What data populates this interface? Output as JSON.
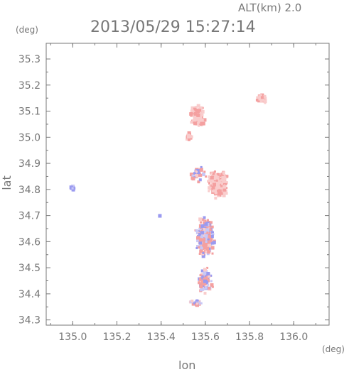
{
  "header": {
    "altitude_label": "ALT(km) 2.0",
    "datetime": "2013/05/29 15:27:14"
  },
  "axes": {
    "y_unit": "(deg)",
    "x_unit": "(deg)",
    "y_label": "lat",
    "x_label": "lon",
    "x_range": [
      134.88,
      136.16
    ],
    "y_range": [
      34.28,
      35.36
    ],
    "x_ticks": [
      "135.0",
      "135.2",
      "135.4",
      "135.6",
      "135.8",
      "136.0"
    ],
    "y_ticks": [
      "35.3",
      "35.2",
      "35.1",
      "35.0",
      "34.9",
      "34.8",
      "34.7",
      "34.6",
      "34.5",
      "34.4",
      "34.3"
    ]
  },
  "colors": {
    "frame": "#777777",
    "positive": "#f4a0a0",
    "positive_light": "#f9cccc",
    "negative": "#9a9af0",
    "negative_light": "#c8c8f6"
  },
  "map_data": {
    "type": "scatter-field",
    "value_scale": "red positive / blue negative",
    "clusters": [
      {
        "lon": 135.0,
        "lat": 34.805,
        "lon_spread": 0.015,
        "lat_spread": 0.012,
        "sign": "negative",
        "n": 18
      },
      {
        "lon": 135.565,
        "lat": 35.08,
        "lon_spread": 0.035,
        "lat_spread": 0.05,
        "sign": "positive",
        "n": 140
      },
      {
        "lon": 135.525,
        "lat": 35.0,
        "lon_spread": 0.02,
        "lat_spread": 0.02,
        "sign": "positive",
        "n": 25
      },
      {
        "lon": 135.855,
        "lat": 35.15,
        "lon_spread": 0.03,
        "lat_spread": 0.025,
        "sign": "positive",
        "n": 40
      },
      {
        "lon": 135.655,
        "lat": 34.82,
        "lon_spread": 0.06,
        "lat_spread": 0.06,
        "sign": "positive",
        "n": 230
      },
      {
        "lon": 135.57,
        "lat": 34.86,
        "lon_spread": 0.04,
        "lat_spread": 0.04,
        "sign": "mixed",
        "n": 40
      },
      {
        "lon": 135.6,
        "lat": 34.62,
        "lon_spread": 0.05,
        "lat_spread": 0.09,
        "sign": "mixed",
        "n": 260
      },
      {
        "lon": 135.6,
        "lat": 34.45,
        "lon_spread": 0.04,
        "lat_spread": 0.06,
        "sign": "mixed",
        "n": 110
      },
      {
        "lon": 135.56,
        "lat": 34.365,
        "lon_spread": 0.03,
        "lat_spread": 0.015,
        "sign": "mixed",
        "n": 40
      },
      {
        "lon": 135.395,
        "lat": 34.7,
        "lon_spread": 0.005,
        "lat_spread": 0.005,
        "sign": "negative",
        "n": 3
      }
    ]
  }
}
